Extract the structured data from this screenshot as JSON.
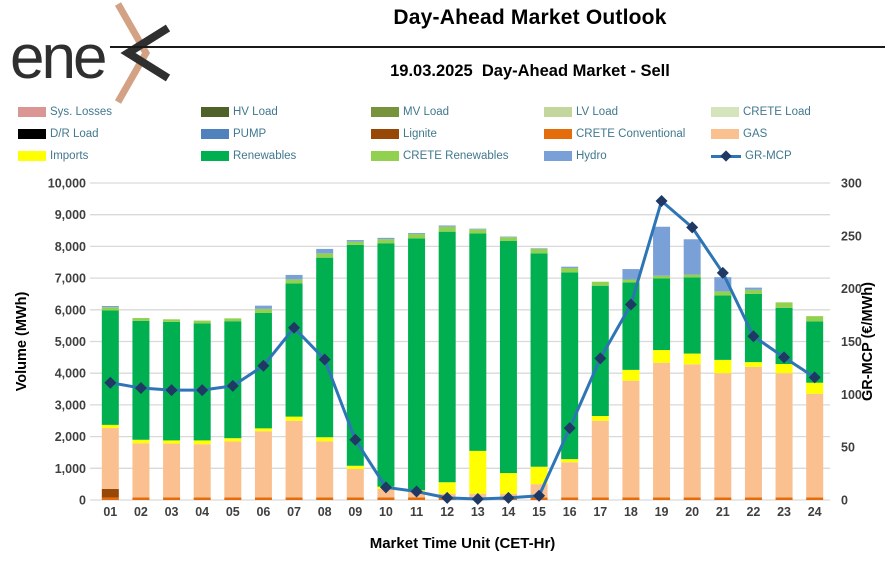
{
  "header": {
    "logo_text": "ene",
    "logo_dark_color": "#2f2f2f",
    "logo_tan_color": "#d3a183",
    "title": "Day-Ahead Market Outlook",
    "subtitle": "19.03.2025  Day-Ahead Market - Sell"
  },
  "legend": {
    "text_color": "#41788e",
    "items": [
      {
        "label": "Sys. Losses",
        "color": "#d99694",
        "type": "box"
      },
      {
        "label": "HV Load",
        "color": "#4f6228",
        "type": "box"
      },
      {
        "label": "MV Load",
        "color": "#77933c",
        "type": "box"
      },
      {
        "label": "LV Load",
        "color": "#c3d69b",
        "type": "box"
      },
      {
        "label": "CRETE Load",
        "color": "#d6e4bc",
        "type": "box"
      },
      {
        "label": "D/R Load",
        "color": "#000000",
        "type": "box"
      },
      {
        "label": "PUMP",
        "color": "#4f81bd",
        "type": "box"
      },
      {
        "label": "Lignite",
        "color": "#974706",
        "type": "box"
      },
      {
        "label": "CRETE Conventional",
        "color": "#e46c0a",
        "type": "box"
      },
      {
        "label": "GAS",
        "color": "#fac090",
        "type": "box"
      },
      {
        "label": "Imports",
        "color": "#ffff00",
        "type": "box"
      },
      {
        "label": "Renewables",
        "color": "#00b050",
        "type": "box"
      },
      {
        "label": "CRETE Renewables",
        "color": "#92d050",
        "type": "box"
      },
      {
        "label": "Hydro",
        "color": "#7aa0d8",
        "type": "box"
      },
      {
        "label": "GR-MCP",
        "color": "#2e75b6",
        "marker_color": "#1f3864",
        "type": "line"
      }
    ]
  },
  "chart_data": {
    "type": "bar",
    "subtype": "stacked-bars-with-line",
    "categories": [
      "01",
      "02",
      "03",
      "04",
      "05",
      "06",
      "07",
      "08",
      "09",
      "10",
      "11",
      "12",
      "13",
      "14",
      "15",
      "16",
      "17",
      "18",
      "19",
      "20",
      "21",
      "22",
      "23",
      "24"
    ],
    "xlabel": "Market Time Unit (CET-Hr)",
    "left_axis": {
      "label": "Volume (MWh)",
      "min": 0,
      "max": 10000,
      "step": 1000,
      "ticks": [
        "0",
        "1,000",
        "2,000",
        "3,000",
        "4,000",
        "5,000",
        "6,000",
        "7,000",
        "8,000",
        "9,000",
        "10,000"
      ]
    },
    "right_axis": {
      "label": "GR-MCP (€/MWh)",
      "min": 0,
      "max": 300,
      "step": 50,
      "ticks": [
        "0",
        "50",
        "100",
        "150",
        "200",
        "250",
        "300"
      ]
    },
    "grid": "horizontal",
    "series": [
      {
        "name": "CRETE Conventional",
        "color": "#e46c0a",
        "values": [
          80,
          80,
          80,
          80,
          80,
          80,
          80,
          80,
          80,
          80,
          80,
          80,
          80,
          80,
          80,
          80,
          80,
          80,
          80,
          80,
          80,
          80,
          80,
          80
        ]
      },
      {
        "name": "Lignite",
        "color": "#974706",
        "values": [
          270,
          0,
          0,
          0,
          0,
          0,
          0,
          0,
          0,
          0,
          0,
          0,
          0,
          0,
          0,
          0,
          0,
          0,
          0,
          0,
          0,
          0,
          0,
          0
        ]
      },
      {
        "name": "GAS",
        "color": "#fac090",
        "values": [
          1920,
          1710,
          1700,
          1680,
          1770,
          2090,
          2420,
          1770,
          900,
          270,
          170,
          120,
          120,
          120,
          420,
          1110,
          2420,
          3685,
          4250,
          4200,
          3920,
          4120,
          3920,
          3270
        ]
      },
      {
        "name": "Imports",
        "color": "#ffff00",
        "values": [
          100,
          110,
          100,
          120,
          100,
          90,
          130,
          130,
          100,
          70,
          60,
          360,
          1350,
          650,
          550,
          100,
          150,
          340,
          400,
          340,
          420,
          150,
          290,
          350
        ]
      },
      {
        "name": "Renewables",
        "color": "#00b050",
        "values": [
          3610,
          3750,
          3740,
          3690,
          3690,
          3640,
          4205,
          5665,
          6970,
          7680,
          7945,
          7905,
          6860,
          7320,
          6730,
          5890,
          4110,
          2760,
          2260,
          2405,
          2030,
          2150,
          1770,
          1930
        ]
      },
      {
        "name": "CRETE Renewables",
        "color": "#92d050",
        "values": [
          100,
          90,
          80,
          90,
          90,
          130,
          125,
          135,
          100,
          130,
          135,
          155,
          130,
          120,
          140,
          140,
          125,
          90,
          85,
          85,
          130,
          130,
          175,
          170
        ]
      },
      {
        "name": "Hydro",
        "color": "#7aa0d8",
        "values": [
          40,
          0,
          0,
          0,
          0,
          100,
          140,
          140,
          50,
          40,
          30,
          40,
          20,
          20,
          20,
          40,
          0,
          330,
          1545,
          1115,
          450,
          70,
          0,
          0
        ]
      }
    ],
    "line_series": {
      "name": "GR-MCP",
      "axis": "right",
      "color": "#2e75b6",
      "marker_color": "#1f3864",
      "values": [
        111,
        106,
        104,
        104,
        108,
        127,
        163,
        133,
        57,
        12,
        8,
        2,
        1,
        2,
        4,
        68,
        134,
        185,
        283,
        258,
        215,
        155,
        135,
        116
      ]
    },
    "style": {
      "gridline_color": "#d9d9d9",
      "tick_color": "#3f3f3f",
      "axis_title_color": "#000000"
    }
  }
}
